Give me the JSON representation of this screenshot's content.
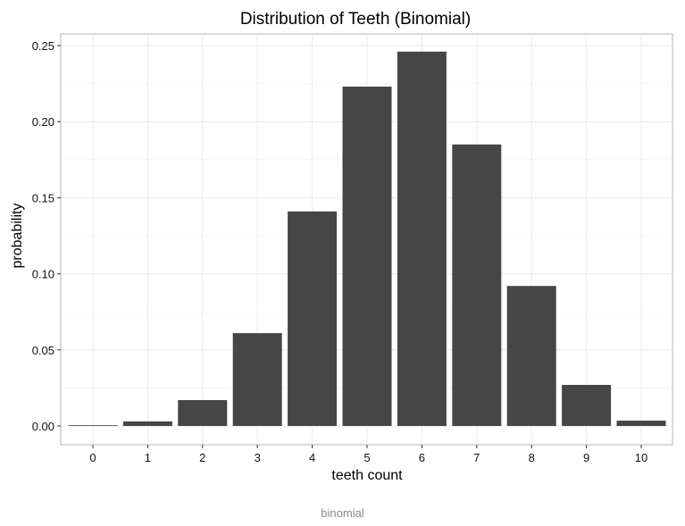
{
  "caption": "binomial",
  "chart_data": {
    "type": "bar",
    "title": "Distribution of Teeth (Binomial)",
    "xlabel": "teeth count",
    "ylabel": "probability",
    "categories": [
      "0",
      "1",
      "2",
      "3",
      "4",
      "5",
      "6",
      "7",
      "8",
      "9",
      "10"
    ],
    "values": [
      0.0002,
      0.003,
      0.017,
      0.061,
      0.141,
      0.223,
      0.246,
      0.185,
      0.092,
      0.027,
      0.0035
    ],
    "yticks": [
      "0.00",
      "0.05",
      "0.10",
      "0.15",
      "0.20",
      "0.25"
    ],
    "ytick_values": [
      0,
      0.05,
      0.1,
      0.15,
      0.2,
      0.25
    ],
    "ylim": [
      -0.0125,
      0.2575
    ],
    "grid": true,
    "bar_color": "#464646"
  }
}
